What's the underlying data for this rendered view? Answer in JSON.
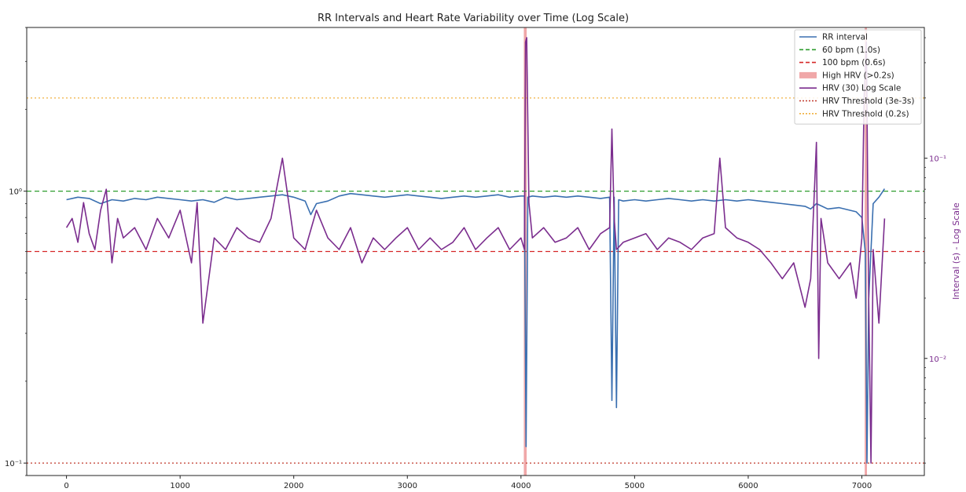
{
  "chart_data": {
    "type": "line",
    "title": "RR Intervals and Heart Rate Variability over Time (Log Scale)",
    "xlabel": "",
    "ylabel_left": "",
    "ylabel_right": "Interval (s) - Log Scale",
    "xlim": [
      -350,
      7550
    ],
    "x_ticks": [
      0,
      1000,
      2000,
      3000,
      4000,
      5000,
      6000,
      7000
    ],
    "x_tick_labels": [
      "0",
      "1000",
      "2000",
      "3000",
      "4000",
      "5000",
      "6000",
      "7000"
    ],
    "left_axis": {
      "scale": "log",
      "ylim": [
        0.09,
        4.0
      ],
      "ticks": [
        0.1,
        1.0
      ],
      "tick_labels": [
        "10⁻¹",
        "10⁰"
      ]
    },
    "right_axis": {
      "scale": "log",
      "ylim": [
        0.0026,
        0.45
      ],
      "ticks": [
        0.01,
        0.1
      ],
      "tick_labels": [
        "10⁻²",
        "10⁻¹"
      ],
      "color": "#7b2d8e"
    },
    "grid": false,
    "legend_position": "top-right",
    "legend": [
      {
        "label": "RR interval",
        "style": "line",
        "color": "#3a6fb0"
      },
      {
        "label": "60 bpm (1.0s)",
        "style": "dashed",
        "color": "#2e9d2e"
      },
      {
        "label": "100 bpm (0.6s)",
        "style": "dashed",
        "color": "#d62728"
      },
      {
        "label": "High HRV (>0.2s)",
        "style": "patch",
        "color": "#e8787a"
      },
      {
        "label": "HRV (30) Log Scale",
        "style": "line",
        "color": "#7b2d8e"
      },
      {
        "label": "HRV Threshold (3e-3s)",
        "style": "dotted",
        "color": "#c0392b"
      },
      {
        "label": "HRV Threshold (0.2s)",
        "style": "dotted",
        "color": "#f0b040"
      }
    ],
    "reference_lines": [
      {
        "axis": "left",
        "y": 1.0,
        "style": "dashed",
        "color": "#2e9d2e"
      },
      {
        "axis": "left",
        "y": 0.6,
        "style": "dashed",
        "color": "#d62728"
      },
      {
        "axis": "right",
        "y": 0.003,
        "style": "dotted",
        "color": "#c0392b"
      },
      {
        "axis": "right",
        "y": 0.2,
        "style": "dotted",
        "color": "#f0b040"
      }
    ],
    "high_hrv_spans": [
      {
        "x0": 4025,
        "x1": 4050
      },
      {
        "x0": 7025,
        "x1": 7045
      }
    ],
    "series": [
      {
        "name": "RR interval",
        "axis": "left",
        "color": "#3a6fb0",
        "x": [
          0,
          100,
          200,
          300,
          400,
          500,
          600,
          700,
          800,
          900,
          1000,
          1100,
          1200,
          1300,
          1400,
          1500,
          1600,
          1700,
          1800,
          1900,
          2000,
          2100,
          2150,
          2200,
          2300,
          2400,
          2500,
          2600,
          2700,
          2800,
          2900,
          3000,
          3100,
          3200,
          3300,
          3400,
          3500,
          3600,
          3700,
          3800,
          3900,
          4000,
          4030,
          4045,
          4060,
          4100,
          4200,
          4300,
          4400,
          4500,
          4600,
          4700,
          4780,
          4800,
          4820,
          4840,
          4860,
          4900,
          5000,
          5100,
          5200,
          5300,
          5400,
          5500,
          5600,
          5700,
          5800,
          5900,
          6000,
          6100,
          6200,
          6300,
          6400,
          6500,
          6550,
          6600,
          6650,
          6700,
          6800,
          6900,
          6950,
          7000,
          7030,
          7045,
          7060,
          7100,
          7150,
          7200
        ],
        "y": [
          0.93,
          0.95,
          0.94,
          0.9,
          0.93,
          0.92,
          0.94,
          0.93,
          0.95,
          0.94,
          0.93,
          0.92,
          0.93,
          0.91,
          0.95,
          0.93,
          0.94,
          0.95,
          0.96,
          0.97,
          0.95,
          0.92,
          0.82,
          0.9,
          0.92,
          0.96,
          0.98,
          0.97,
          0.96,
          0.95,
          0.96,
          0.97,
          0.96,
          0.95,
          0.94,
          0.95,
          0.96,
          0.95,
          0.96,
          0.97,
          0.95,
          0.96,
          0.96,
          0.115,
          0.95,
          0.96,
          0.95,
          0.96,
          0.95,
          0.96,
          0.95,
          0.94,
          0.95,
          0.17,
          0.95,
          0.16,
          0.93,
          0.92,
          0.93,
          0.92,
          0.93,
          0.94,
          0.93,
          0.92,
          0.93,
          0.92,
          0.93,
          0.92,
          0.93,
          0.92,
          0.91,
          0.9,
          0.89,
          0.88,
          0.86,
          0.9,
          0.88,
          0.86,
          0.87,
          0.85,
          0.84,
          0.8,
          0.6,
          0.1,
          0.4,
          0.9,
          0.95,
          1.02
        ]
      },
      {
        "name": "HRV (30) Log Scale",
        "axis": "right",
        "color": "#7b2d8e",
        "x": [
          0,
          50,
          100,
          150,
          200,
          250,
          300,
          350,
          400,
          450,
          500,
          600,
          700,
          800,
          900,
          1000,
          1100,
          1150,
          1200,
          1300,
          1400,
          1500,
          1600,
          1700,
          1800,
          1900,
          2000,
          2100,
          2200,
          2300,
          2400,
          2500,
          2600,
          2700,
          2800,
          2900,
          3000,
          3100,
          3200,
          3300,
          3400,
          3500,
          3600,
          3700,
          3800,
          3900,
          4000,
          4030,
          4040,
          4050,
          4070,
          4100,
          4200,
          4300,
          4400,
          4500,
          4600,
          4700,
          4780,
          4800,
          4820,
          4840,
          4900,
          5000,
          5100,
          5200,
          5300,
          5400,
          5500,
          5600,
          5700,
          5750,
          5800,
          5900,
          6000,
          6100,
          6200,
          6300,
          6400,
          6500,
          6550,
          6600,
          6620,
          6640,
          6700,
          6800,
          6900,
          6950,
          7000,
          7020,
          7040,
          7060,
          7080,
          7100,
          7150,
          7200
        ],
        "y": [
          0.045,
          0.05,
          0.038,
          0.06,
          0.042,
          0.035,
          0.055,
          0.07,
          0.03,
          0.05,
          0.04,
          0.045,
          0.035,
          0.05,
          0.04,
          0.055,
          0.03,
          0.06,
          0.015,
          0.04,
          0.035,
          0.045,
          0.04,
          0.038,
          0.05,
          0.1,
          0.04,
          0.035,
          0.055,
          0.04,
          0.035,
          0.045,
          0.03,
          0.04,
          0.035,
          0.04,
          0.045,
          0.035,
          0.04,
          0.035,
          0.038,
          0.045,
          0.035,
          0.04,
          0.045,
          0.035,
          0.04,
          0.035,
          0.38,
          0.4,
          0.06,
          0.04,
          0.045,
          0.038,
          0.04,
          0.045,
          0.035,
          0.042,
          0.045,
          0.14,
          0.05,
          0.035,
          0.038,
          0.04,
          0.042,
          0.035,
          0.04,
          0.038,
          0.035,
          0.04,
          0.042,
          0.1,
          0.045,
          0.04,
          0.038,
          0.035,
          0.03,
          0.025,
          0.03,
          0.018,
          0.025,
          0.12,
          0.01,
          0.05,
          0.03,
          0.025,
          0.03,
          0.02,
          0.04,
          0.2,
          0.38,
          0.02,
          0.003,
          0.035,
          0.015,
          0.05
        ]
      }
    ]
  }
}
